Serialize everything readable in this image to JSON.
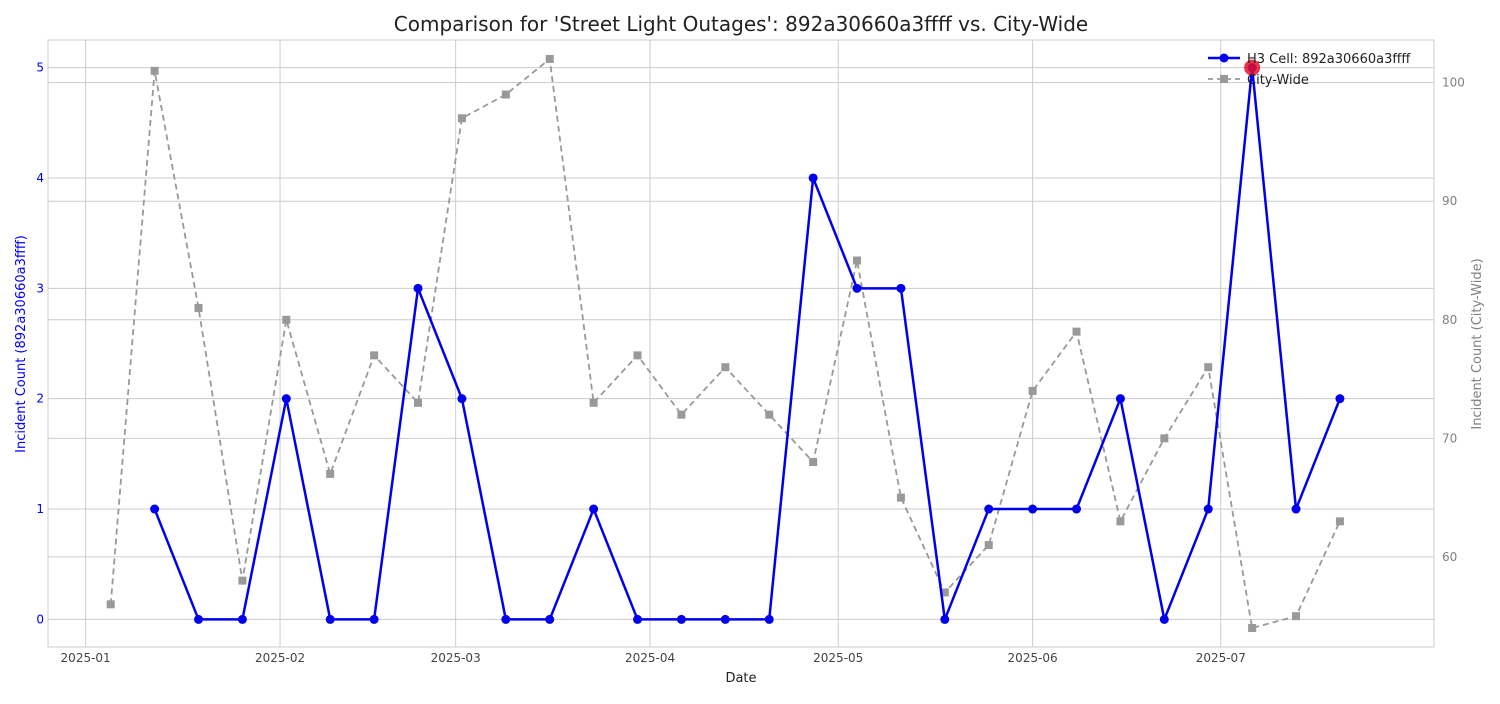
{
  "chart_data": {
    "type": "line",
    "title": "Comparison for 'Street Light Outages': 892a30660a3ffff vs. City-Wide",
    "xlabel": "Date",
    "ylabel_left": "Incident Count (892a30660a3ffff)",
    "ylabel_right": "Incident Count (City-Wide)",
    "x_ticks": [
      "2025-01",
      "2025-02",
      "2025-03",
      "2025-04",
      "2025-05",
      "2025-06",
      "2025-07"
    ],
    "x_tick_dates": [
      "2025-01-01",
      "2025-02-01",
      "2025-03-01",
      "2025-04-01",
      "2025-05-01",
      "2025-06-01",
      "2025-07-01"
    ],
    "xlim": [
      "2024-12-26",
      "2025-08-04"
    ],
    "ylim_left": [
      -0.25,
      5.25
    ],
    "ylim_right": [
      52.4,
      103.6
    ],
    "yticks_left": [
      0,
      1,
      2,
      3,
      4,
      5
    ],
    "yticks_right": [
      60,
      70,
      80,
      90,
      100
    ],
    "grid": true,
    "legend": "top-right",
    "colors": {
      "cell": "#0000ee",
      "city": "#999999",
      "highlight": "#e8102a",
      "left_axis": "#0000ff",
      "right_axis": "#808080"
    },
    "series": [
      {
        "name": "H3 Cell: 892a30660a3ffff",
        "axis": "left",
        "style": "solid-circle",
        "x": [
          "2025-01-12",
          "2025-01-19",
          "2025-01-26",
          "2025-02-02",
          "2025-02-09",
          "2025-02-16",
          "2025-02-23",
          "2025-03-02",
          "2025-03-09",
          "2025-03-16",
          "2025-03-23",
          "2025-03-30",
          "2025-04-06",
          "2025-04-13",
          "2025-04-20",
          "2025-04-27",
          "2025-05-04",
          "2025-05-11",
          "2025-05-18",
          "2025-05-25",
          "2025-06-01",
          "2025-06-08",
          "2025-06-15",
          "2025-06-22",
          "2025-06-29",
          "2025-07-06",
          "2025-07-13",
          "2025-07-20"
        ],
        "values": [
          1,
          0,
          0,
          2,
          0,
          0,
          3,
          2,
          0,
          0,
          1,
          0,
          0,
          0,
          0,
          4,
          3,
          3,
          0,
          1,
          1,
          1,
          2,
          0,
          1,
          5,
          1,
          2
        ]
      },
      {
        "name": "City-Wide",
        "axis": "right",
        "style": "dashed-square",
        "x": [
          "2025-01-05",
          "2025-01-12",
          "2025-01-19",
          "2025-01-26",
          "2025-02-02",
          "2025-02-09",
          "2025-02-16",
          "2025-02-23",
          "2025-03-02",
          "2025-03-09",
          "2025-03-16",
          "2025-03-23",
          "2025-03-30",
          "2025-04-06",
          "2025-04-13",
          "2025-04-20",
          "2025-04-27",
          "2025-05-04",
          "2025-05-11",
          "2025-05-18",
          "2025-05-25",
          "2025-06-01",
          "2025-06-08",
          "2025-06-15",
          "2025-06-22",
          "2025-06-29",
          "2025-07-06",
          "2025-07-13",
          "2025-07-20"
        ],
        "values": [
          56,
          101,
          81,
          58,
          80,
          67,
          77,
          73,
          97,
          99,
          102,
          73,
          77,
          72,
          76,
          72,
          68,
          85,
          65,
          57,
          61,
          74,
          79,
          63,
          70,
          76,
          54,
          55,
          63
        ]
      }
    ],
    "highlight": {
      "x": "2025-07-06",
      "value": 5,
      "axis": "left"
    }
  }
}
